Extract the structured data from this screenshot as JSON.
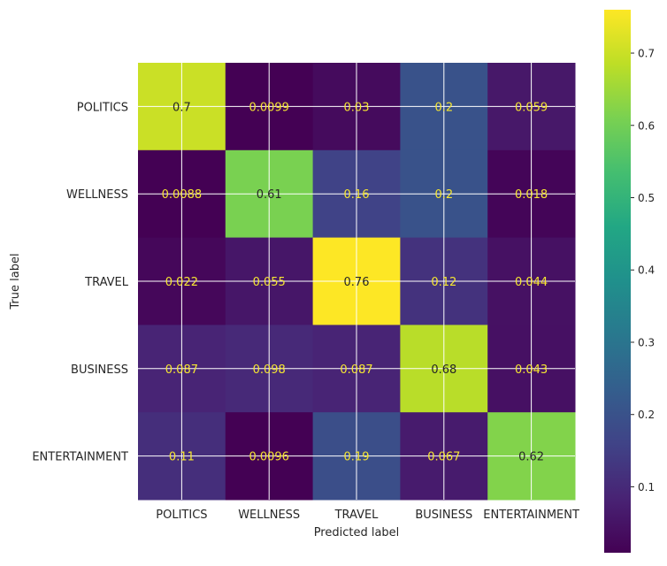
{
  "chart_data": {
    "type": "heatmap",
    "title": "",
    "xlabel": "Predicted label",
    "ylabel": "True label",
    "x_categories": [
      "POLITICS",
      "WELLNESS",
      "TRAVEL",
      "BUSINESS",
      "ENTERTAINMENT"
    ],
    "y_categories": [
      "POLITICS",
      "WELLNESS",
      "TRAVEL",
      "BUSINESS",
      "ENTERTAINMENT"
    ],
    "values": [
      [
        0.7,
        0.0099,
        0.03,
        0.2,
        0.059
      ],
      [
        0.0088,
        0.61,
        0.16,
        0.2,
        0.018
      ],
      [
        0.022,
        0.055,
        0.76,
        0.12,
        0.044
      ],
      [
        0.087,
        0.098,
        0.087,
        0.68,
        0.043
      ],
      [
        0.11,
        0.0096,
        0.19,
        0.067,
        0.62
      ]
    ],
    "cell_labels": [
      [
        "0.7",
        "0.0099",
        "0.03",
        "0.2",
        "0.059"
      ],
      [
        "0.0088",
        "0.61",
        "0.16",
        "0.2",
        "0.018"
      ],
      [
        "0.022",
        "0.055",
        "0.76",
        "0.12",
        "0.044"
      ],
      [
        "0.087",
        "0.098",
        "0.087",
        "0.68",
        "0.043"
      ],
      [
        "0.11",
        "0.0096",
        "0.19",
        "0.067",
        "0.62"
      ]
    ],
    "colormap": "viridis",
    "color_range": [
      0.0088,
      0.76
    ],
    "colorbar": {
      "ticks": [
        0.1,
        0.2,
        0.3,
        0.4,
        0.5,
        0.6,
        0.7
      ],
      "tick_labels": [
        "0.1",
        "0.2",
        "0.3",
        "0.4",
        "0.5",
        "0.6",
        "0.7"
      ],
      "placement": "right"
    },
    "grid": true,
    "colors": {
      "grid_line": "#ffffff",
      "text_on_dark": "#f5e632",
      "text_on_light": "#262626",
      "axis_text": "#262626"
    }
  }
}
